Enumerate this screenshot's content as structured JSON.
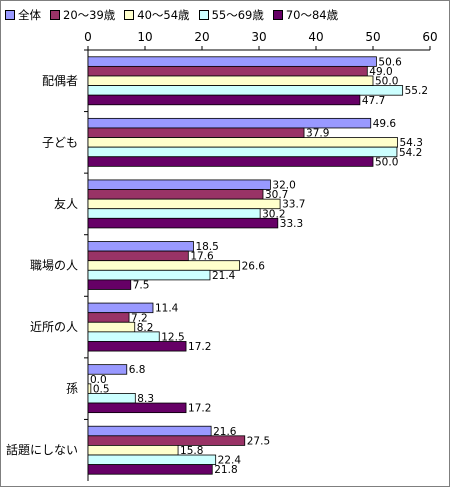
{
  "chart_data": {
    "type": "bar",
    "orientation": "horizontal",
    "categories": [
      "配偶者",
      "子ども",
      "友人",
      "職場の人",
      "近所の人",
      "孫",
      "話題にしない"
    ],
    "series": [
      {
        "name": "全体",
        "color": "#9999ff",
        "values": [
          50.6,
          49.6,
          32.0,
          18.5,
          11.4,
          6.8,
          21.6
        ],
        "labels": [
          "50.6",
          "49.6",
          "32.0",
          "18.5",
          "11.4",
          "6.8",
          "21.6"
        ]
      },
      {
        "name": "20〜39歳",
        "color": "#993366",
        "values": [
          49.0,
          37.9,
          30.7,
          17.6,
          7.2,
          0.0,
          27.5
        ],
        "labels": [
          "49.0",
          "37.9",
          "30.7",
          "17.6",
          "7.2",
          "0.0",
          "27.5"
        ]
      },
      {
        "name": "40〜54歳",
        "color": "#ffffcc",
        "values": [
          50.0,
          54.3,
          33.7,
          26.6,
          8.2,
          0.5,
          15.8
        ],
        "labels": [
          "50.0",
          "54.3",
          "33.7",
          "26.6",
          "8.2",
          "0.5",
          "15.8"
        ]
      },
      {
        "name": "55〜69歳",
        "color": "#ccffff",
        "values": [
          55.2,
          54.2,
          30.2,
          21.4,
          12.5,
          8.3,
          22.4
        ],
        "labels": [
          "55.2",
          "54.2",
          "30.2",
          "21.4",
          "12.5",
          "8.3",
          "22.4"
        ]
      },
      {
        "name": "70〜84歳",
        "color": "#660066",
        "values": [
          47.7,
          50.0,
          33.3,
          7.5,
          17.2,
          17.2,
          21.8
        ],
        "labels": [
          "47.7",
          "50.0",
          "33.3",
          "7.5",
          "17.2",
          "17.2",
          "21.8"
        ]
      }
    ],
    "xlim": [
      0,
      60
    ],
    "xticks": [
      0,
      10,
      20,
      30,
      40,
      50,
      60
    ],
    "title": "",
    "xlabel": "",
    "ylabel": "",
    "grid": false,
    "legend_position": "top-left"
  }
}
